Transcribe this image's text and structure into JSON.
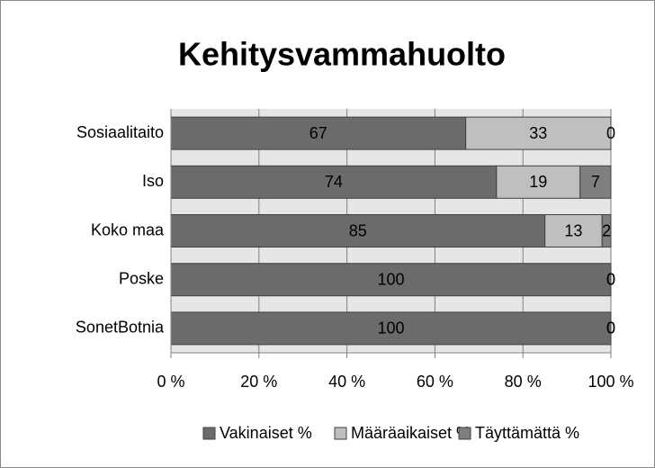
{
  "chart_data": {
    "type": "stacked-bar-horizontal",
    "title": "Kehitysvammahuolto",
    "categories": [
      "Sosiaalitaito",
      "Iso",
      "Koko maa",
      "Poske",
      "SonetBotnia"
    ],
    "series": [
      {
        "name": "Vakinaiset %",
        "color": "#6b6b6b",
        "values": [
          67,
          74,
          85,
          100,
          100
        ]
      },
      {
        "name": "Määräaikaiset %",
        "color": "#bfbfbf",
        "values": [
          33,
          19,
          13,
          0,
          0
        ]
      },
      {
        "name": "Täyttämättä %",
        "color": "#7f7f7f",
        "values": [
          0,
          7,
          2,
          0,
          0
        ]
      }
    ],
    "xlim": [
      0,
      100
    ],
    "xticks": [
      {
        "value": 0,
        "label": "0 %"
      },
      {
        "value": 20,
        "label": "20 %"
      },
      {
        "value": 40,
        "label": "40 %"
      },
      {
        "value": 60,
        "label": "60 %"
      },
      {
        "value": 80,
        "label": "80 %"
      },
      {
        "value": 100,
        "label": "100 %"
      }
    ],
    "grid": true,
    "legend": "bottom"
  }
}
